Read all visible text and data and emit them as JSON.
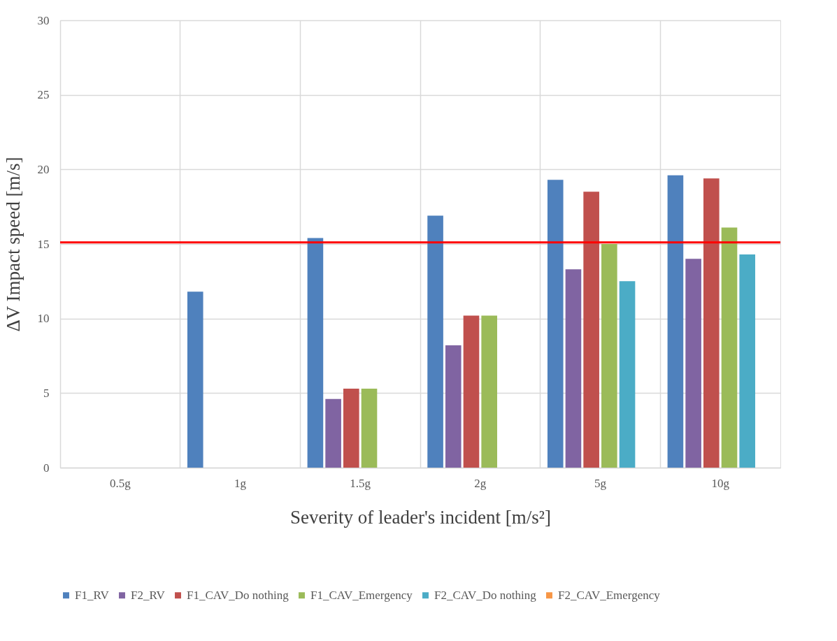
{
  "chart_data": {
    "type": "bar",
    "xlabel": "Severity of leader's incident [m/s²]",
    "ylabel": "ΔV  Impact speed [m/s]",
    "categories": [
      "0.5g",
      "1g",
      "1.5g",
      "2g",
      "5g",
      "10g"
    ],
    "series": [
      {
        "name": "F1_RV",
        "color": "#4f81bd",
        "values": [
          null,
          11.8,
          15.4,
          16.9,
          19.3,
          19.6
        ]
      },
      {
        "name": "F2_RV",
        "color": "#8064a2",
        "values": [
          null,
          null,
          4.6,
          8.2,
          13.3,
          14.0
        ]
      },
      {
        "name": "F1_CAV_Do nothing",
        "color": "#c0504d",
        "values": [
          null,
          null,
          5.3,
          10.2,
          18.5,
          19.4
        ]
      },
      {
        "name": "F1_CAV_Emergency",
        "color": "#9bbb59",
        "values": [
          null,
          null,
          5.3,
          10.2,
          15.0,
          16.1
        ]
      },
      {
        "name": "F2_CAV_Do nothing",
        "color": "#4bacc6",
        "values": [
          null,
          null,
          null,
          null,
          12.5,
          14.3
        ]
      },
      {
        "name": "F2_CAV_Emergency",
        "color": "#f79646",
        "values": [
          null,
          null,
          null,
          null,
          null,
          null
        ]
      }
    ],
    "ylim": [
      0,
      30
    ],
    "yticks": [
      0,
      5,
      10,
      15,
      20,
      25,
      30
    ],
    "grid": true,
    "legend": "bottom",
    "ref_lines": [
      {
        "axis": "y",
        "value": 15.1,
        "color": "#ff0000"
      }
    ]
  }
}
